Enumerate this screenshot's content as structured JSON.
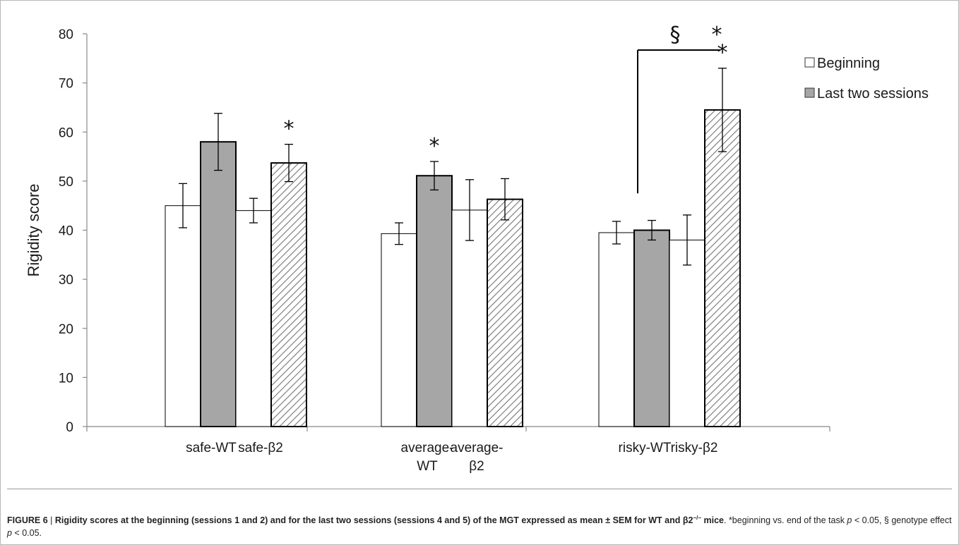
{
  "chart_data": {
    "type": "bar",
    "ylabel": "Rigidity score",
    "xlabel": "",
    "ylim": [
      0,
      80
    ],
    "yticks": [
      0,
      10,
      20,
      30,
      40,
      50,
      60,
      70,
      80
    ],
    "grid": false,
    "legend_position": "top-right",
    "groups": [
      {
        "bars": [
          {
            "series": "Beginning",
            "fill": "white",
            "value": 45.0,
            "error": 4.5
          },
          {
            "series": "Last two sessions",
            "fill": "gray",
            "value": 58.0,
            "error": 5.8,
            "annotation": ""
          },
          {
            "series": "Beginning",
            "fill": "white",
            "value": 44.0,
            "error": 2.5
          },
          {
            "series": "Last two sessions",
            "fill": "hatch",
            "value": 53.7,
            "error": 3.8,
            "annotation": "*"
          }
        ],
        "labels": [
          [
            "safe-WT"
          ],
          [
            "safe-β2"
          ]
        ]
      },
      {
        "bars": [
          {
            "series": "Beginning",
            "fill": "white",
            "value": 39.3,
            "error": 2.2
          },
          {
            "series": "Last two sessions",
            "fill": "gray",
            "value": 51.1,
            "error": 2.9,
            "annotation": "*"
          },
          {
            "series": "Beginning",
            "fill": "white",
            "value": 44.1,
            "error": 6.2
          },
          {
            "series": "Last two sessions",
            "fill": "hatch",
            "value": 46.3,
            "error": 4.2,
            "annotation": ""
          }
        ],
        "labels": [
          [
            "average-",
            "WT"
          ],
          [
            "average-",
            "β2"
          ]
        ]
      },
      {
        "bars": [
          {
            "series": "Beginning",
            "fill": "white",
            "value": 39.5,
            "error": 2.3
          },
          {
            "series": "Last two sessions",
            "fill": "gray",
            "value": 40.0,
            "error": 2.0
          },
          {
            "series": "Beginning",
            "fill": "white",
            "value": 38.0,
            "error": 5.1
          },
          {
            "series": "Last two sessions",
            "fill": "hatch",
            "value": 64.5,
            "error": 8.5,
            "annotation": "*"
          }
        ],
        "labels": [
          [
            "risky-WT"
          ],
          [
            "risky-β2"
          ]
        ]
      }
    ],
    "legend": [
      {
        "label": "Beginning",
        "fill": "white"
      },
      {
        "label": "Last two sessions",
        "fill": "gray"
      }
    ],
    "genotype_bracket": {
      "symbol": "§",
      "star": "*",
      "y_value": 76.7,
      "left_bar_top": 47.5
    }
  },
  "colors": {
    "gray_fill": "#a6a6a6",
    "axis": "#888888",
    "bar_edge": "#000000",
    "hatch": "#7f7f7f"
  },
  "caption": {
    "label": "FIGURE 6",
    "separator": " | ",
    "bold_text": "Rigidity scores at the beginning (sessions 1 and 2) and for the last two sessions (sessions 4 and 5) of the MGT expressed as mean ± SEM for WT and β2",
    "bold_sup": "−/−",
    "bold_tail": " mice",
    "rest_before_p1": ". *beginning vs. end of the task ",
    "p_italic": "p",
    "rest_mid": " < 0.05, § genotype effect ",
    "rest_after": " < 0.05."
  }
}
